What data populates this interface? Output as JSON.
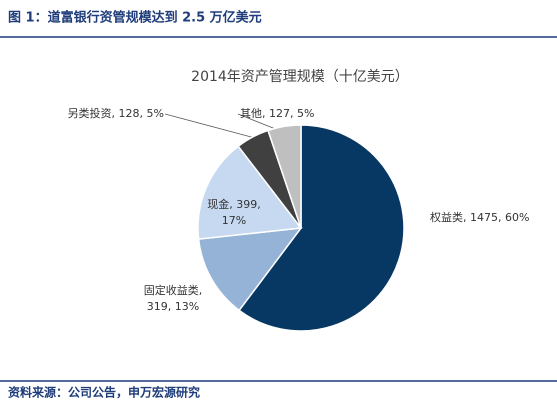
{
  "header": {
    "title": "图 1：道富银行资管规模达到 2.5 万亿美元"
  },
  "chart_data": {
    "type": "pie",
    "title": "2014年资产管理规模（十亿美元）",
    "values": [
      1475,
      319,
      399,
      128,
      127
    ],
    "value_labels": [
      [
        "权益类, 1475, 60%"
      ],
      [
        "固定收益类,",
        "319, 13%"
      ],
      [
        "现金, 399,",
        "17%"
      ],
      [
        "另类投资, 128, 5%"
      ],
      [
        "其他, 127, 5%"
      ]
    ],
    "colors": [
      "#073763",
      "#95b3d7",
      "#c6d9f1",
      "#404040",
      "#bfbfbf"
    ]
  },
  "footer": {
    "source": "资料来源：公司公告，申万宏源研究"
  }
}
